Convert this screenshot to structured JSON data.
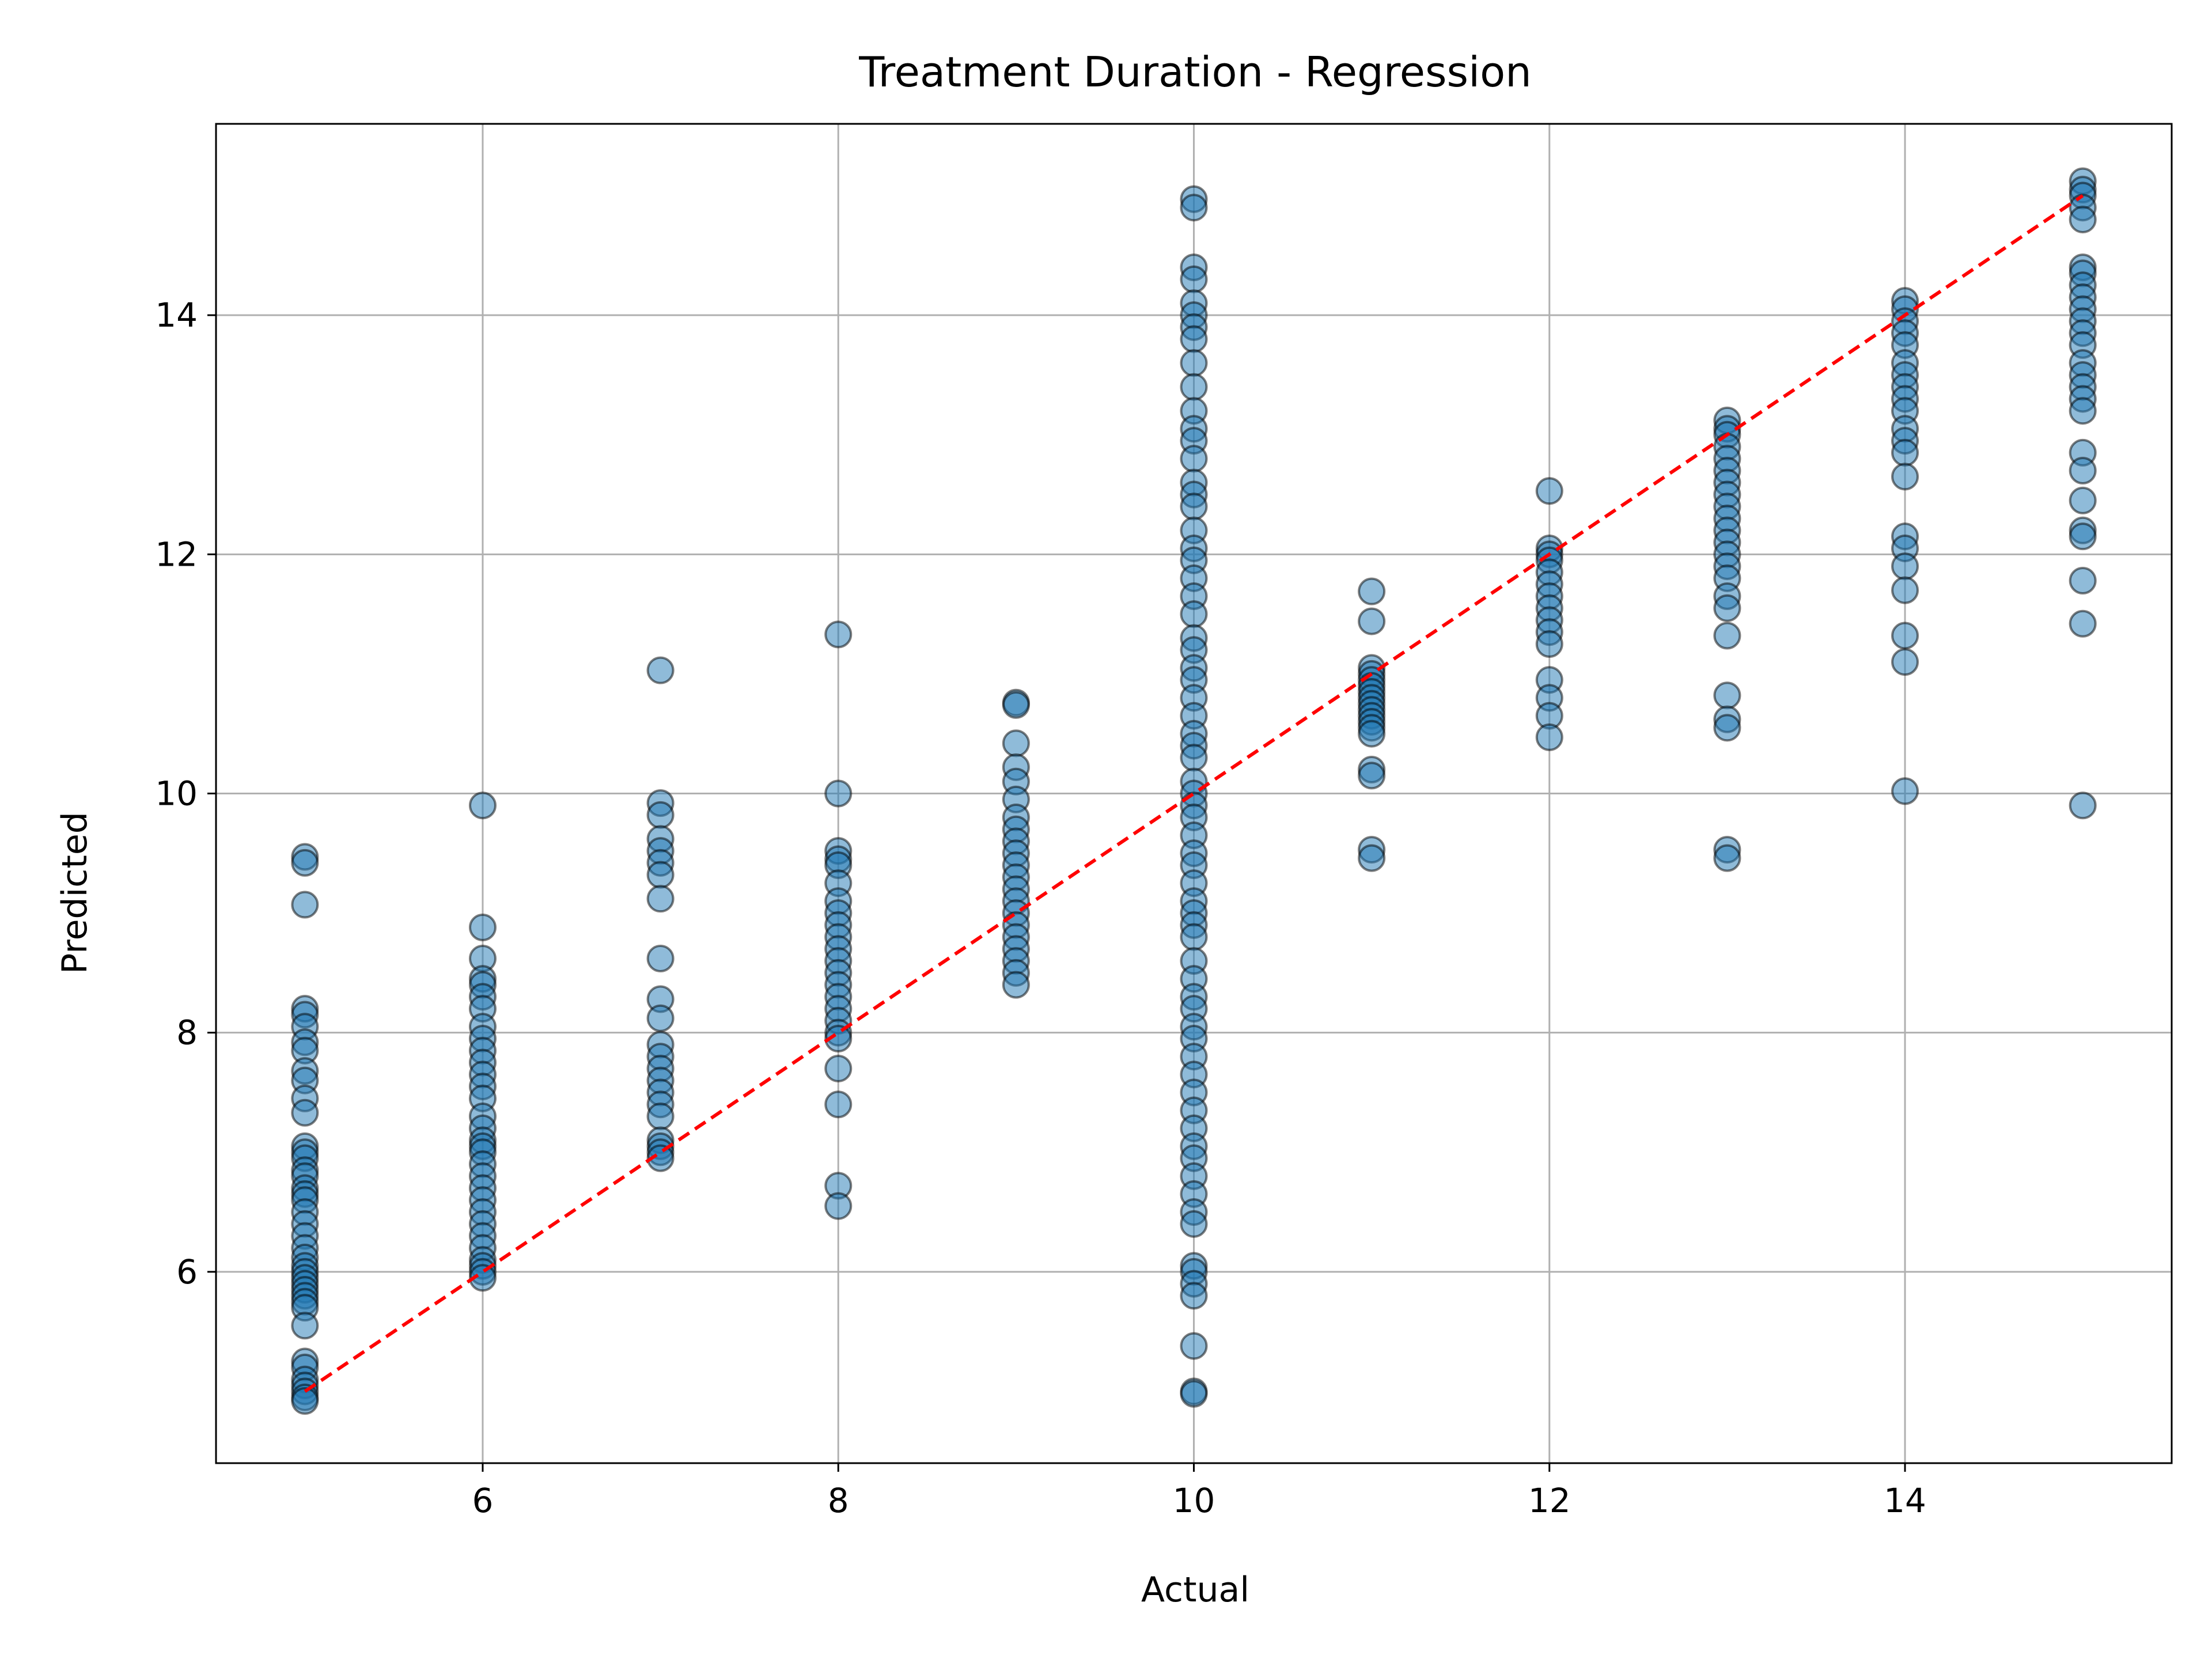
{
  "chart_data": {
    "type": "scatter",
    "title": "Treatment Duration - Regression",
    "xlabel": "Actual",
    "ylabel": "Predicted",
    "xlim": [
      4.5,
      15.5
    ],
    "ylim": [
      4.4,
      15.6
    ],
    "xticks": [
      6,
      8,
      10,
      12,
      14
    ],
    "yticks": [
      6,
      8,
      10,
      12,
      14
    ],
    "grid": true,
    "series": [
      {
        "marker": "circle",
        "color": "#1f77b4",
        "edgecolor": "#000000",
        "alpha": 0.5,
        "points": [
          [
            5,
            9.47
          ],
          [
            5,
            9.42
          ],
          [
            5,
            9.07
          ],
          [
            5,
            8.2
          ],
          [
            5,
            8.15
          ],
          [
            5,
            8.05
          ],
          [
            5,
            7.92
          ],
          [
            5,
            7.85
          ],
          [
            5,
            7.68
          ],
          [
            5,
            7.6
          ],
          [
            5,
            7.45
          ],
          [
            5,
            7.33
          ],
          [
            5,
            7.05
          ],
          [
            5,
            7.0
          ],
          [
            5,
            6.95
          ],
          [
            5,
            6.85
          ],
          [
            5,
            6.8
          ],
          [
            5,
            6.7
          ],
          [
            5,
            6.65
          ],
          [
            5,
            6.6
          ],
          [
            5,
            6.5
          ],
          [
            5,
            6.4
          ],
          [
            5,
            6.3
          ],
          [
            5,
            6.2
          ],
          [
            5,
            6.12
          ],
          [
            5,
            6.05
          ],
          [
            5,
            6.0
          ],
          [
            5,
            5.95
          ],
          [
            5,
            5.9
          ],
          [
            5,
            5.85
          ],
          [
            5,
            5.8
          ],
          [
            5,
            5.75
          ],
          [
            5,
            5.7
          ],
          [
            5,
            5.55
          ],
          [
            5,
            5.25
          ],
          [
            5,
            5.2
          ],
          [
            5,
            5.1
          ],
          [
            5,
            5.05
          ],
          [
            5,
            5.0
          ],
          [
            5,
            4.95
          ],
          [
            5,
            4.92
          ],
          [
            6,
            9.9
          ],
          [
            6,
            8.88
          ],
          [
            6,
            8.62
          ],
          [
            6,
            8.45
          ],
          [
            6,
            8.4
          ],
          [
            6,
            8.3
          ],
          [
            6,
            8.2
          ],
          [
            6,
            8.05
          ],
          [
            6,
            7.95
          ],
          [
            6,
            7.85
          ],
          [
            6,
            7.75
          ],
          [
            6,
            7.65
          ],
          [
            6,
            7.55
          ],
          [
            6,
            7.45
          ],
          [
            6,
            7.3
          ],
          [
            6,
            7.2
          ],
          [
            6,
            7.1
          ],
          [
            6,
            7.05
          ],
          [
            6,
            7.0
          ],
          [
            6,
            6.9
          ],
          [
            6,
            6.8
          ],
          [
            6,
            6.7
          ],
          [
            6,
            6.6
          ],
          [
            6,
            6.5
          ],
          [
            6,
            6.4
          ],
          [
            6,
            6.3
          ],
          [
            6,
            6.2
          ],
          [
            6,
            6.1
          ],
          [
            6,
            6.05
          ],
          [
            6,
            6.0
          ],
          [
            6,
            5.95
          ],
          [
            7,
            11.03
          ],
          [
            7,
            9.92
          ],
          [
            7,
            9.82
          ],
          [
            7,
            9.62
          ],
          [
            7,
            9.52
          ],
          [
            7,
            9.42
          ],
          [
            7,
            9.32
          ],
          [
            7,
            9.12
          ],
          [
            7,
            8.62
          ],
          [
            7,
            8.28
          ],
          [
            7,
            8.12
          ],
          [
            7,
            7.9
          ],
          [
            7,
            7.8
          ],
          [
            7,
            7.7
          ],
          [
            7,
            7.6
          ],
          [
            7,
            7.5
          ],
          [
            7,
            7.4
          ],
          [
            7,
            7.3
          ],
          [
            7,
            7.1
          ],
          [
            7,
            7.05
          ],
          [
            7,
            7.0
          ],
          [
            7,
            6.95
          ],
          [
            8,
            11.33
          ],
          [
            8,
            10.0
          ],
          [
            8,
            9.52
          ],
          [
            8,
            9.45
          ],
          [
            8,
            9.4
          ],
          [
            8,
            9.25
          ],
          [
            8,
            9.1
          ],
          [
            8,
            9.0
          ],
          [
            8,
            8.9
          ],
          [
            8,
            8.8
          ],
          [
            8,
            8.7
          ],
          [
            8,
            8.6
          ],
          [
            8,
            8.5
          ],
          [
            8,
            8.4
          ],
          [
            8,
            8.3
          ],
          [
            8,
            8.2
          ],
          [
            8,
            8.1
          ],
          [
            8,
            8.0
          ],
          [
            8,
            7.95
          ],
          [
            8,
            7.7
          ],
          [
            8,
            7.4
          ],
          [
            8,
            6.72
          ],
          [
            8,
            6.55
          ],
          [
            9,
            10.76
          ],
          [
            9,
            10.74
          ],
          [
            9,
            10.42
          ],
          [
            9,
            10.22
          ],
          [
            9,
            10.1
          ],
          [
            9,
            9.95
          ],
          [
            9,
            9.8
          ],
          [
            9,
            9.7
          ],
          [
            9,
            9.6
          ],
          [
            9,
            9.5
          ],
          [
            9,
            9.4
          ],
          [
            9,
            9.3
          ],
          [
            9,
            9.2
          ],
          [
            9,
            9.1
          ],
          [
            9,
            9.0
          ],
          [
            9,
            8.9
          ],
          [
            9,
            8.8
          ],
          [
            9,
            8.7
          ],
          [
            9,
            8.6
          ],
          [
            9,
            8.5
          ],
          [
            9,
            8.4
          ],
          [
            10,
            14.97
          ],
          [
            10,
            14.9
          ],
          [
            10,
            14.4
          ],
          [
            10,
            14.3
          ],
          [
            10,
            14.1
          ],
          [
            10,
            14.0
          ],
          [
            10,
            13.9
          ],
          [
            10,
            13.8
          ],
          [
            10,
            13.6
          ],
          [
            10,
            13.4
          ],
          [
            10,
            13.2
          ],
          [
            10,
            13.05
          ],
          [
            10,
            12.95
          ],
          [
            10,
            12.8
          ],
          [
            10,
            12.6
          ],
          [
            10,
            12.5
          ],
          [
            10,
            12.4
          ],
          [
            10,
            12.2
          ],
          [
            10,
            12.05
          ],
          [
            10,
            11.95
          ],
          [
            10,
            11.8
          ],
          [
            10,
            11.65
          ],
          [
            10,
            11.5
          ],
          [
            10,
            11.3
          ],
          [
            10,
            11.2
          ],
          [
            10,
            11.05
          ],
          [
            10,
            10.95
          ],
          [
            10,
            10.8
          ],
          [
            10,
            10.65
          ],
          [
            10,
            10.5
          ],
          [
            10,
            10.4
          ],
          [
            10,
            10.3
          ],
          [
            10,
            10.1
          ],
          [
            10,
            10.0
          ],
          [
            10,
            9.9
          ],
          [
            10,
            9.8
          ],
          [
            10,
            9.65
          ],
          [
            10,
            9.5
          ],
          [
            10,
            9.4
          ],
          [
            10,
            9.25
          ],
          [
            10,
            9.1
          ],
          [
            10,
            9.0
          ],
          [
            10,
            8.9
          ],
          [
            10,
            8.8
          ],
          [
            10,
            8.6
          ],
          [
            10,
            8.45
          ],
          [
            10,
            8.3
          ],
          [
            10,
            8.2
          ],
          [
            10,
            8.05
          ],
          [
            10,
            7.95
          ],
          [
            10,
            7.8
          ],
          [
            10,
            7.65
          ],
          [
            10,
            7.5
          ],
          [
            10,
            7.35
          ],
          [
            10,
            7.2
          ],
          [
            10,
            7.05
          ],
          [
            10,
            6.95
          ],
          [
            10,
            6.8
          ],
          [
            10,
            6.65
          ],
          [
            10,
            6.5
          ],
          [
            10,
            6.4
          ],
          [
            10,
            6.05
          ],
          [
            10,
            6.0
          ],
          [
            10,
            5.9
          ],
          [
            10,
            5.8
          ],
          [
            10,
            5.38
          ],
          [
            10,
            5.0
          ],
          [
            10,
            4.98
          ],
          [
            11,
            11.69
          ],
          [
            11,
            11.44
          ],
          [
            11,
            11.05
          ],
          [
            11,
            11.0
          ],
          [
            11,
            10.95
          ],
          [
            11,
            10.9
          ],
          [
            11,
            10.85
          ],
          [
            11,
            10.8
          ],
          [
            11,
            10.75
          ],
          [
            11,
            10.7
          ],
          [
            11,
            10.65
          ],
          [
            11,
            10.6
          ],
          [
            11,
            10.55
          ],
          [
            11,
            10.5
          ],
          [
            11,
            10.2
          ],
          [
            11,
            10.15
          ],
          [
            11,
            9.53
          ],
          [
            11,
            9.46
          ],
          [
            12,
            12.53
          ],
          [
            12,
            12.05
          ],
          [
            12,
            12.0
          ],
          [
            12,
            11.95
          ],
          [
            12,
            11.85
          ],
          [
            12,
            11.75
          ],
          [
            12,
            11.65
          ],
          [
            12,
            11.55
          ],
          [
            12,
            11.45
          ],
          [
            12,
            11.35
          ],
          [
            12,
            11.25
          ],
          [
            12,
            10.95
          ],
          [
            12,
            10.8
          ],
          [
            12,
            10.65
          ],
          [
            12,
            10.47
          ],
          [
            13,
            13.12
          ],
          [
            13,
            13.05
          ],
          [
            13,
            13.0
          ],
          [
            13,
            12.9
          ],
          [
            13,
            12.8
          ],
          [
            13,
            12.7
          ],
          [
            13,
            12.6
          ],
          [
            13,
            12.5
          ],
          [
            13,
            12.4
          ],
          [
            13,
            12.3
          ],
          [
            13,
            12.2
          ],
          [
            13,
            12.1
          ],
          [
            13,
            12.0
          ],
          [
            13,
            11.9
          ],
          [
            13,
            11.8
          ],
          [
            13,
            11.65
          ],
          [
            13,
            11.55
          ],
          [
            13,
            11.32
          ],
          [
            13,
            10.82
          ],
          [
            13,
            10.62
          ],
          [
            13,
            10.55
          ],
          [
            13,
            9.53
          ],
          [
            13,
            9.46
          ],
          [
            14,
            14.12
          ],
          [
            14,
            14.05
          ],
          [
            14,
            13.95
          ],
          [
            14,
            13.85
          ],
          [
            14,
            13.75
          ],
          [
            14,
            13.6
          ],
          [
            14,
            13.5
          ],
          [
            14,
            13.4
          ],
          [
            14,
            13.3
          ],
          [
            14,
            13.2
          ],
          [
            14,
            13.05
          ],
          [
            14,
            12.95
          ],
          [
            14,
            12.85
          ],
          [
            14,
            12.65
          ],
          [
            14,
            12.15
          ],
          [
            14,
            12.05
          ],
          [
            14,
            11.9
          ],
          [
            14,
            11.7
          ],
          [
            14,
            11.32
          ],
          [
            14,
            11.1
          ],
          [
            14,
            10.02
          ],
          [
            15,
            15.12
          ],
          [
            15,
            15.05
          ],
          [
            15,
            15.0
          ],
          [
            15,
            14.9
          ],
          [
            15,
            14.8
          ],
          [
            15,
            14.4
          ],
          [
            15,
            14.35
          ],
          [
            15,
            14.25
          ],
          [
            15,
            14.15
          ],
          [
            15,
            14.05
          ],
          [
            15,
            13.95
          ],
          [
            15,
            13.85
          ],
          [
            15,
            13.75
          ],
          [
            15,
            13.6
          ],
          [
            15,
            13.5
          ],
          [
            15,
            13.4
          ],
          [
            15,
            13.3
          ],
          [
            15,
            13.2
          ],
          [
            15,
            12.85
          ],
          [
            15,
            12.7
          ],
          [
            15,
            12.45
          ],
          [
            15,
            12.2
          ],
          [
            15,
            12.15
          ],
          [
            15,
            11.78
          ],
          [
            15,
            11.42
          ],
          [
            15,
            9.9
          ]
        ]
      }
    ],
    "reference_line": {
      "style": "dashed",
      "color": "#ff0000",
      "from": [
        5,
        5
      ],
      "to": [
        15,
        15
      ]
    }
  }
}
